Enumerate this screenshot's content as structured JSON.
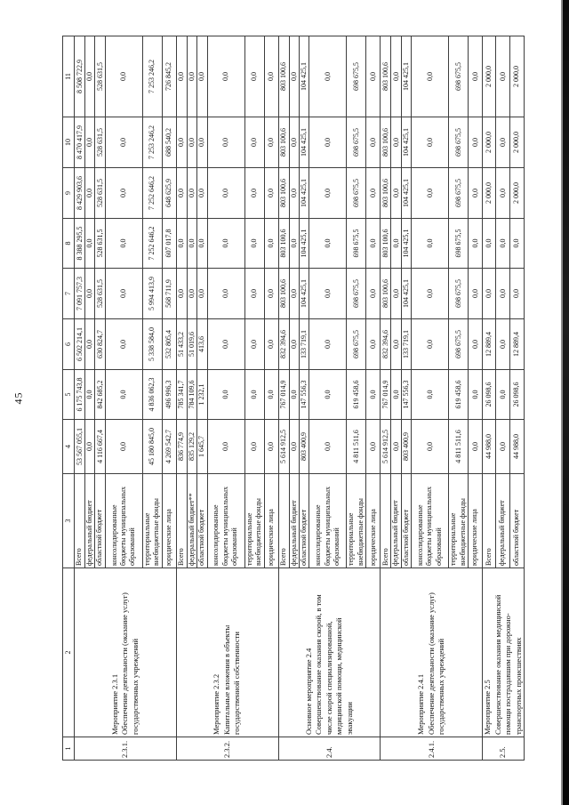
{
  "page_number": "45",
  "table": {
    "column_numbers": [
      "1",
      "2",
      "3",
      "4",
      "5",
      "6",
      "7",
      "8",
      "9",
      "10",
      "11"
    ],
    "groups": [
      {
        "num": "2.3.1.",
        "name": "Мероприятие 2.3.1\nОбеспечение деятельности (оказание услуг)\nгосударственных учреждений",
        "rows": [
          {
            "source": "Всего",
            "values": [
              "53 567 055,1",
              "6 175 743,8",
              "6 502 214,1",
              "7 091 757,3",
              "8 388 295,5",
              "8 429 903,6",
              "8 470 417,9",
              "8 508 722,9"
            ]
          },
          {
            "source": "федеральный бюджет",
            "values": [
              "0,0",
              "0,0",
              "0,0",
              "0,0",
              "0,0",
              "0,0",
              "0,0",
              "0,0"
            ]
          },
          {
            "source": "областной бюджет",
            "values": [
              "4 116 667,4",
              "842 685,2",
              "630 824,7",
              "528 631,5",
              "528 631,5",
              "528 631,5",
              "528 631,5",
              "528 631,5"
            ]
          },
          {
            "source": "консолидированные бюджеты муниципальных образований",
            "values": [
              "0,0",
              "0,0",
              "0,0",
              "0,0",
              "0,0",
              "0,0",
              "0,0",
              "0,0"
            ]
          },
          {
            "source": "территориальные внебюджетные фонды",
            "values": [
              "45 180 845,0",
              "4 836 062,3",
              "5 338 584,0",
              "5 994 413,9",
              "7 252 646,2",
              "7 252 646,2",
              "7 253 246,2",
              "7 253 246,2"
            ]
          },
          {
            "source": "юридические лица",
            "values": [
              "4 269 542,7",
              "496 996,3",
              "532 805,4",
              "568 711,9",
              "607 017,8",
              "648 625,9",
              "688 540,2",
              "726 845,2"
            ]
          }
        ]
      },
      {
        "num": "2.3.2.",
        "name": "Мероприятие 2.3.2\nКапитальные вложения в объекты\nгосударственной собственности",
        "rows": [
          {
            "source": "Всего",
            "values": [
              "836 774,9",
              "785 341,7",
              "51 433,2",
              "0,0",
              "0,0",
              "0,0",
              "0,0",
              "0,0"
            ]
          },
          {
            "source": "федеральный бюджет**",
            "values": [
              "835 129,2",
              "784 109,6",
              "51 019,6",
              "0,0",
              "0,0",
              "0,0",
              "0,0",
              "0,0"
            ]
          },
          {
            "source": "областной бюджет",
            "values": [
              "1 645,7",
              "1 232,1",
              "413,6",
              "0,0",
              "0,0",
              "0,0",
              "0,0",
              "0,0"
            ]
          },
          {
            "source": "консолидированные бюджеты муниципальных образований",
            "values": [
              "0,0",
              "0,0",
              "0,0",
              "0,0",
              "0,0",
              "0,0",
              "0,0",
              "0,0"
            ]
          },
          {
            "source": "территориальные внебюджетные фонды",
            "values": [
              "0,0",
              "0,0",
              "0,0",
              "0,0",
              "0,0",
              "0,0",
              "0,0",
              "0,0"
            ]
          },
          {
            "source": "юридические лица",
            "values": [
              "0,0",
              "0,0",
              "0,0",
              "0,0",
              "0,0",
              "0,0",
              "0,0",
              "0,0"
            ]
          }
        ]
      },
      {
        "num": "2.4.",
        "name": "Основное мероприятие 2.4\nСовершенствование оказания скорой, в том\nчисле скорой специализированной,\nмедицинской помощи, медицинской\nэвакуации",
        "rows": [
          {
            "source": "Всего",
            "values": [
              "5 614 912,5",
              "767 014,9",
              "832 394,6",
              "803 100,6",
              "803 100,6",
              "803 100,6",
              "803 100,6",
              "803 100,6"
            ]
          },
          {
            "source": "федеральный бюджет",
            "values": [
              "0,0",
              "0,0",
              "0,0",
              "0,0",
              "0,0",
              "0,0",
              "0,0",
              "0,0"
            ]
          },
          {
            "source": "областной бюджет",
            "values": [
              "803 400,9",
              "147 556,3",
              "133 719,1",
              "104 425,1",
              "104 425,1",
              "104 425,1",
              "104 425,1",
              "104 425,1"
            ]
          },
          {
            "source": "консолидированные бюджеты муниципальных образований",
            "values": [
              "0,0",
              "0,0",
              "0,0",
              "0,0",
              "0,0",
              "0,0",
              "0,0",
              "0,0"
            ]
          },
          {
            "source": "территориальные внебюджетные фонды",
            "values": [
              "4 811 511,6",
              "619 458,6",
              "698 675,5",
              "698 675,5",
              "698 675,5",
              "698 675,5",
              "698 675,5",
              "698 675,5"
            ]
          },
          {
            "source": "юридические лица",
            "values": [
              "0,0",
              "0,0",
              "0,0",
              "0,0",
              "0,0",
              "0,0",
              "0,0",
              "0,0"
            ]
          }
        ]
      },
      {
        "num": "2.4.1.",
        "name": "Мероприятие 2.4.1\nОбеспечение деятельности (оказание услуг)\nгосударственных учреждений",
        "rows": [
          {
            "source": "Всего",
            "values": [
              "5 614 912,5",
              "767 014,9",
              "832 394,6",
              "803 100,6",
              "803 100,6",
              "803 100,6",
              "803 100,6",
              "803 100,6"
            ]
          },
          {
            "source": "федеральный бюджет",
            "values": [
              "0,0",
              "0,0",
              "0,0",
              "0,0",
              "0,0",
              "0,0",
              "0,0",
              "0,0"
            ]
          },
          {
            "source": "областной бюджет",
            "values": [
              "803 400,9",
              "147 556,3",
              "133 719,1",
              "104 425,1",
              "104 425,1",
              "104 425,1",
              "104 425,1",
              "104 425,1"
            ]
          },
          {
            "source": "консолидированные бюджеты муниципальных образований",
            "values": [
              "0,0",
              "0,0",
              "0,0",
              "0,0",
              "0,0",
              "0,0",
              "0,0",
              "0,0"
            ]
          },
          {
            "source": "территориальные внебюджетные фонды",
            "values": [
              "4 811 511,6",
              "619 458,6",
              "698 675,5",
              "698 675,5",
              "698 675,5",
              "698 675,5",
              "698 675,5",
              "698 675,5"
            ]
          },
          {
            "source": "юридические лица",
            "values": [
              "0,0",
              "0,0",
              "0,0",
              "0,0",
              "0,0",
              "0,0",
              "0,0",
              "0,0"
            ]
          }
        ]
      },
      {
        "num": "2.5.",
        "name": "Мероприятие 2.5\nСовершенствование оказания медицинской\nпомощи пострадавшим при дорожно-\nтранспортных происшествиях",
        "rows": [
          {
            "source": "Всего",
            "values": [
              "44 988,0",
              "26 098,6",
              "12 889,4",
              "0,0",
              "0,0",
              "2 000,0",
              "2 000,0",
              "2 000,0"
            ]
          },
          {
            "source": "федеральный бюджет",
            "values": [
              "0,0",
              "0,0",
              "0,0",
              "0,0",
              "0,0",
              "0,0",
              "0,0",
              "0,0"
            ]
          },
          {
            "source": "областной бюджет",
            "values": [
              "44 988,0",
              "26 098,6",
              "12 889,4",
              "0,0",
              "0,0",
              "2 000,0",
              "2 000,0",
              "2 000,0"
            ]
          }
        ]
      }
    ]
  }
}
